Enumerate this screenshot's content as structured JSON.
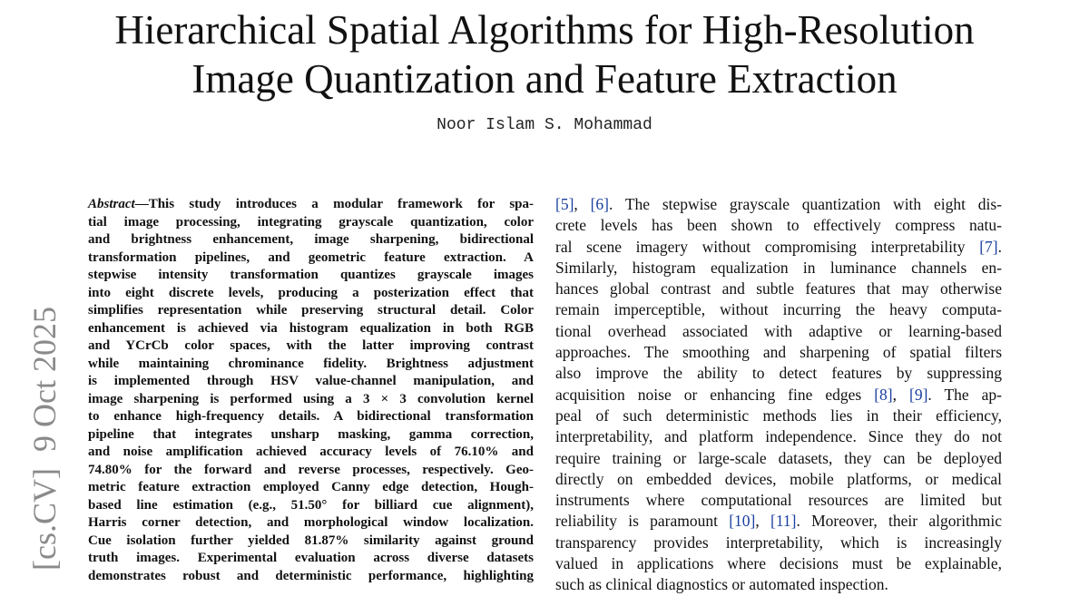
{
  "header": {
    "title_lines": [
      "Hierarchical Spatial Algorithms for High-Resolution",
      "Image Quantization and Feature Extraction"
    ],
    "author": "Noor Islam S. Mohammad"
  },
  "side_stamp": "[cs.CV]  9 Oct 2025",
  "abstract": {
    "label": "Abstract",
    "lines": [
      "—This study introduces a modular framework for spa-",
      "tial image processing, integrating grayscale quantization, color",
      "and brightness enhancement, image sharpening, bidirectional",
      "transformation pipelines, and geometric feature extraction. A",
      "stepwise intensity transformation quantizes grayscale images",
      "into eight discrete levels, producing a posterization effect that",
      "simplifies representation while preserving structural detail. Color",
      "enhancement is achieved via histogram equalization in both RGB",
      "and YCrCb color spaces, with the latter improving contrast",
      "while maintaining chrominance fidelity. Brightness adjustment",
      "is implemented through HSV value-channel manipulation, and",
      "image sharpening is performed using a 3 × 3 convolution kernel",
      "to enhance high-frequency details. A bidirectional transformation",
      "pipeline that integrates unsharp masking, gamma correction,",
      "and noise amplification achieved accuracy levels of 76.10% and",
      "74.80% for the forward and reverse processes, respectively. Geo-",
      "metric feature extraction employed Canny edge detection, Hough-",
      "based line estimation (e.g., 51.50° for billiard cue alignment),",
      "Harris corner detection, and morphological window localization.",
      "Cue isolation further yielded 81.87% similarity against ground",
      "truth images. Experimental evaluation across diverse datasets",
      "demonstrates robust and deterministic performance, highlighting"
    ]
  },
  "body": {
    "lines": [
      "[5], [6]. The stepwise grayscale quantization with eight dis-",
      "crete levels has been shown to effectively compress natu-",
      "ral scene imagery without compromising interpretability [7].",
      "Similarly, histogram equalization in luminance channels en-",
      "hances global contrast and subtle features that may otherwise",
      "remain imperceptible, without incurring the heavy computa-",
      "tional overhead associated with adaptive or learning-based",
      "approaches. The smoothing and sharpening of spatial filters",
      "also improve the ability to detect features by suppressing",
      "acquisition noise or enhancing fine edges [8], [9]. The ap-",
      "peal of such deterministic methods lies in their efficiency,",
      "interpretability, and platform independence. Since they do not",
      "require training or large-scale datasets, they can be deployed",
      "directly on embedded devices, mobile platforms, or medical",
      "instruments where computational resources are limited but",
      "reliability is paramount [10], [11]. Moreover, their algorithmic",
      "transparency provides interpretability, which is increasingly",
      "valued in applications where decisions must be explainable,",
      "such as clinical diagnostics or automated inspection."
    ]
  }
}
